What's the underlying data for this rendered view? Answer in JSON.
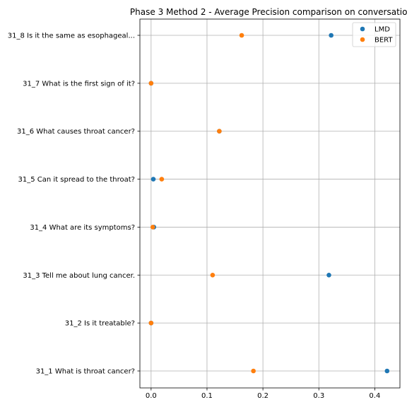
{
  "chart_data": {
    "type": "scatter",
    "title": "Phase 3 Method 2 - Average Precision comparison on conversation",
    "xlabel": "",
    "ylabel": "",
    "xlim": [
      -0.02,
      0.445
    ],
    "xticks": [
      0.0,
      0.1,
      0.2,
      0.3,
      0.4
    ],
    "xtick_labels": [
      "0.0",
      "0.1",
      "0.2",
      "0.3",
      "0.4"
    ],
    "categories": [
      "31_1 What is throat cancer?",
      "31_2 Is it treatable?",
      "31_3 Tell me about lung cancer.",
      "31_4 What are its symptoms?",
      "31_5 Can it spread to the throat?",
      "31_6 What causes throat cancer?",
      "31_7 What is the first sign of it?",
      "31_8 Is it the same as esophageal..."
    ],
    "series": [
      {
        "name": "LMD",
        "color": "#1f77b4",
        "values": [
          0.422,
          0.0,
          0.318,
          0.005,
          0.004,
          0.122,
          0.0,
          0.322
        ]
      },
      {
        "name": "BERT",
        "color": "#ff7f0e",
        "values": [
          0.183,
          0.0,
          0.11,
          0.003,
          0.019,
          0.122,
          0.0,
          0.162
        ]
      }
    ],
    "grid": true,
    "legend_position": "top-right"
  }
}
